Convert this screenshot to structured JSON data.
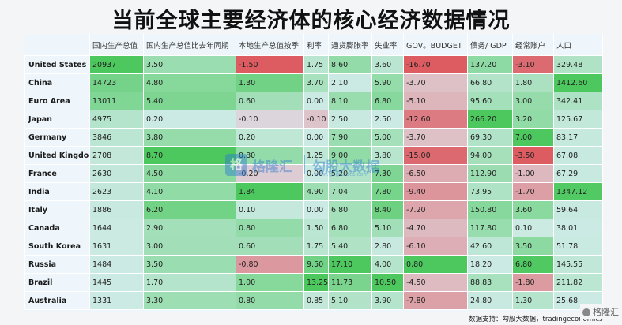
{
  "title": "当前全球主要经济体的核心经济数据情况",
  "columns": [
    "",
    "国内生产总值",
    "国内生产总值比去年同期",
    "本地生产总值按季",
    "利率",
    "通货膨胀率",
    "失业率",
    "GOV。BUDGET",
    "债务/ GDP",
    "经常账户",
    "人口"
  ],
  "rows": [
    {
      "country": "United States",
      "v": [
        "20937",
        "3.50",
        "-1.50",
        "1.75",
        "8.60",
        "3.60",
        "-16.70",
        "137.20",
        "-3.10",
        "329.48"
      ]
    },
    {
      "country": "China",
      "v": [
        "14723",
        "4.80",
        "1.30",
        "3.70",
        "2.10",
        "5.90",
        "-3.70",
        "66.80",
        "1.80",
        "1412.60"
      ]
    },
    {
      "country": "Euro Area",
      "v": [
        "13011",
        "5.40",
        "0.60",
        "0.00",
        "8.10",
        "6.80",
        "-5.10",
        "95.60",
        "3.00",
        "342.41"
      ]
    },
    {
      "country": "Japan",
      "v": [
        "4975",
        "0.20",
        "-0.10",
        "-0.10",
        "2.50",
        "2.50",
        "-12.60",
        "266.20",
        "3.20",
        "125.67"
      ]
    },
    {
      "country": "Germany",
      "v": [
        "3846",
        "3.80",
        "0.20",
        "0.00",
        "7.90",
        "5.00",
        "-3.70",
        "69.30",
        "7.00",
        "83.17"
      ]
    },
    {
      "country": "United Kingdom",
      "v": [
        "2708",
        "8.70",
        "0.80",
        "1.25",
        "9.00",
        "3.80",
        "-15.00",
        "94.00",
        "-3.50",
        "67.08"
      ]
    },
    {
      "country": "France",
      "v": [
        "2630",
        "4.50",
        "-0.20",
        "0.00",
        "5.20",
        "7.30",
        "-6.50",
        "112.90",
        "-1.00",
        "67.29"
      ]
    },
    {
      "country": "India",
      "v": [
        "2623",
        "4.10",
        "1.84",
        "4.90",
        "7.04",
        "7.80",
        "-9.40",
        "73.95",
        "-1.70",
        "1347.12"
      ]
    },
    {
      "country": "Italy",
      "v": [
        "1886",
        "6.20",
        "0.10",
        "0.00",
        "6.80",
        "8.40",
        "-7.20",
        "150.80",
        "3.60",
        "59.64"
      ]
    },
    {
      "country": "Canada",
      "v": [
        "1644",
        "2.90",
        "0.80",
        "1.50",
        "6.80",
        "5.10",
        "-4.70",
        "117.80",
        "0.10",
        "38.01"
      ]
    },
    {
      "country": "South Korea",
      "v": [
        "1631",
        "3.00",
        "0.60",
        "1.75",
        "5.40",
        "2.80",
        "-6.10",
        "42.60",
        "3.50",
        "51.78"
      ]
    },
    {
      "country": "Russia",
      "v": [
        "1484",
        "3.50",
        "-0.80",
        "9.50",
        "17.10",
        "4.00",
        "0.80",
        "18.20",
        "6.80",
        "145.55"
      ]
    },
    {
      "country": "Brazil",
      "v": [
        "1445",
        "1.70",
        "1.00",
        "13.25",
        "11.73",
        "10.50",
        "-4.50",
        "88.83",
        "-1.80",
        "211.82"
      ]
    },
    {
      "country": "Australia",
      "v": [
        "1331",
        "3.30",
        "0.80",
        "0.85",
        "5.10",
        "3.90",
        "-7.80",
        "24.80",
        "1.30",
        "25.68"
      ]
    }
  ],
  "watermark": {
    "logo": "格",
    "brand": "格隆汇",
    "partner": "勾股大数据",
    "partner_url": "www.gogudata.com"
  },
  "footer": "数据支持：勾股大数据，tradingeconomics",
  "corner_badge": "格隆汇",
  "colors": {
    "green_strong": "#5ccf6e",
    "green_light": "#bfeccb",
    "red_strong": "#e06b70",
    "red_light": "#e8c5cc",
    "neutral": "#ddeff6"
  }
}
